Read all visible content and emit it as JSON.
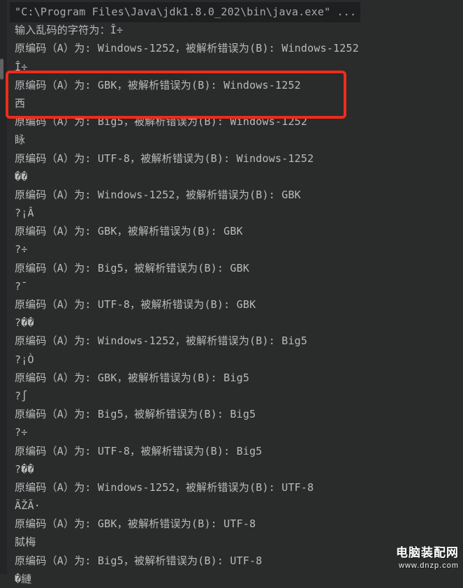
{
  "console": {
    "lines": [
      {
        "kind": "command",
        "text": "\"C:\\Program Files\\Java\\jdk1.8.0_202\\bin\\java.exe\" ..."
      },
      {
        "kind": "output",
        "text": "输入乱码的字符为：Î÷"
      },
      {
        "kind": "output",
        "text": "原编码（A）为: Windows-1252，被解析错误为(B): Windows-1252"
      },
      {
        "kind": "output",
        "text": "Î÷"
      },
      {
        "kind": "output",
        "text": "原编码（A）为: GBK，被解析错误为(B): Windows-1252"
      },
      {
        "kind": "output",
        "text": "西"
      },
      {
        "kind": "output",
        "text": "原编码（A）为: Big5，被解析错误为(B): Windows-1252"
      },
      {
        "kind": "output",
        "text": "眿"
      },
      {
        "kind": "output",
        "text": "原编码（A）为: UTF-8，被解析错误为(B): Windows-1252"
      },
      {
        "kind": "output",
        "text": "��"
      },
      {
        "kind": "output",
        "text": "原编码（A）为: Windows-1252，被解析错误为(B): GBK"
      },
      {
        "kind": "output",
        "text": "?¡Â"
      },
      {
        "kind": "output",
        "text": "原编码（A）为: GBK，被解析错误为(B): GBK"
      },
      {
        "kind": "output",
        "text": "?÷"
      },
      {
        "kind": "output",
        "text": "原编码（A）为: Big5，被解析错误为(B): GBK"
      },
      {
        "kind": "output",
        "text": "?¯"
      },
      {
        "kind": "output",
        "text": "原编码（A）为: UTF-8，被解析错误为(B): GBK"
      },
      {
        "kind": "output",
        "text": "?��"
      },
      {
        "kind": "output",
        "text": "原编码（A）为: Windows-1252，被解析错误为(B): Big5"
      },
      {
        "kind": "output",
        "text": "?¡Ò"
      },
      {
        "kind": "output",
        "text": "原编码（A）为: GBK，被解析错误为(B): Big5"
      },
      {
        "kind": "output",
        "text": "?∫"
      },
      {
        "kind": "output",
        "text": "原编码（A）为: Big5，被解析错误为(B): Big5"
      },
      {
        "kind": "output",
        "text": "?÷"
      },
      {
        "kind": "output",
        "text": "原编码（A）为: UTF-8，被解析错误为(B): Big5"
      },
      {
        "kind": "output",
        "text": "?��"
      },
      {
        "kind": "output",
        "text": "原编码（A）为: Windows-1252，被解析错误为(B): UTF-8"
      },
      {
        "kind": "output",
        "text": "ÃŽÃ·"
      },
      {
        "kind": "output",
        "text": "原编码（A）为: GBK，被解析错误为(B): UTF-8"
      },
      {
        "kind": "output",
        "text": "脦梅"
      },
      {
        "kind": "output",
        "text": "原编码（A）为: Big5，被解析错误为(B): UTF-8"
      },
      {
        "kind": "output",
        "text": "�縺"
      }
    ],
    "red_box_line_indexes": [
      4,
      5
    ]
  },
  "watermark": {
    "title": "电脑装配网",
    "url": "www.dnzp.com"
  },
  "colors": {
    "background": "#2a2b2b",
    "text": "#b9bbbd",
    "command_background": "#1e1f20",
    "command_text": "#a8aaac",
    "red_box_border": "#ee2c1c",
    "watermark_text": "#ffffff"
  }
}
